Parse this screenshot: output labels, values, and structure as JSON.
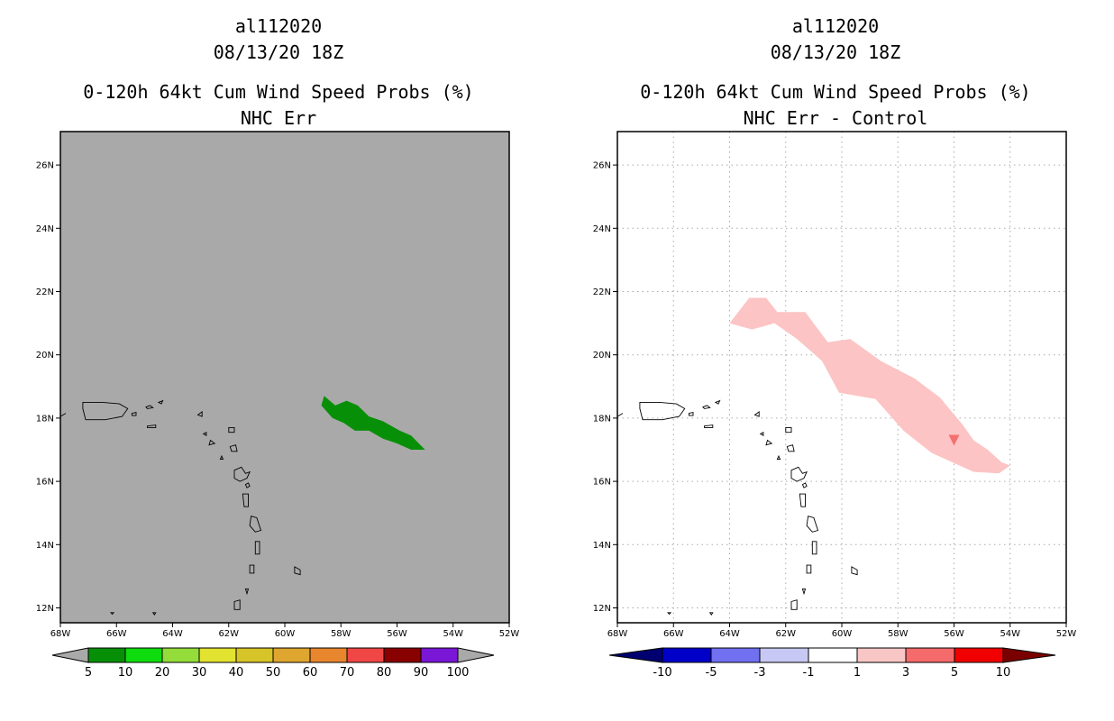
{
  "panels": [
    {
      "storm_id": "al112020",
      "datetime": "08/13/20 18Z",
      "product": "0-120h 64kt Cum Wind Speed Probs (%)",
      "subtitle": "NHC Err",
      "background_color": "#a9a9a9",
      "colorbar": {
        "labels": [
          "5",
          "10",
          "20",
          "30",
          "40",
          "50",
          "60",
          "70",
          "80",
          "90",
          "100"
        ],
        "colors": [
          "#088f08",
          "#0fdc0f",
          "#93dc3a",
          "#e2e231",
          "#d6c428",
          "#dea52f",
          "#e8862d",
          "#f04646",
          "#880000",
          "#7a16d6"
        ]
      }
    },
    {
      "storm_id": "al112020",
      "datetime": "08/13/20 18Z",
      "product": "0-120h 64kt Cum Wind Speed Probs (%)",
      "subtitle": "NHC Err - Control",
      "background_color": "#ffffff",
      "colorbar": {
        "labels": [
          "-10",
          "-5",
          "-3",
          "-1",
          "1",
          "3",
          "5",
          "10"
        ],
        "colors": [
          "#0000c8",
          "#7070f0",
          "#c8c8f4",
          "#ffffff",
          "#f9c6c6",
          "#f56a6a",
          "#f00000"
        ],
        "end_colors": [
          "#000070",
          "#7a0000"
        ]
      }
    }
  ],
  "axes": {
    "lon_labels": [
      "68W",
      "66W",
      "64W",
      "62W",
      "60W",
      "58W",
      "56W",
      "54W",
      "52W"
    ],
    "lat_labels": [
      "12N",
      "14N",
      "16N",
      "18N",
      "20N",
      "22N",
      "24N",
      "26N"
    ]
  },
  "colors": {
    "prob_fill": "#088f08",
    "diff_fill": "#fcc4c4",
    "diff_marker": "#f57070",
    "grid": "#aaaaaa"
  }
}
